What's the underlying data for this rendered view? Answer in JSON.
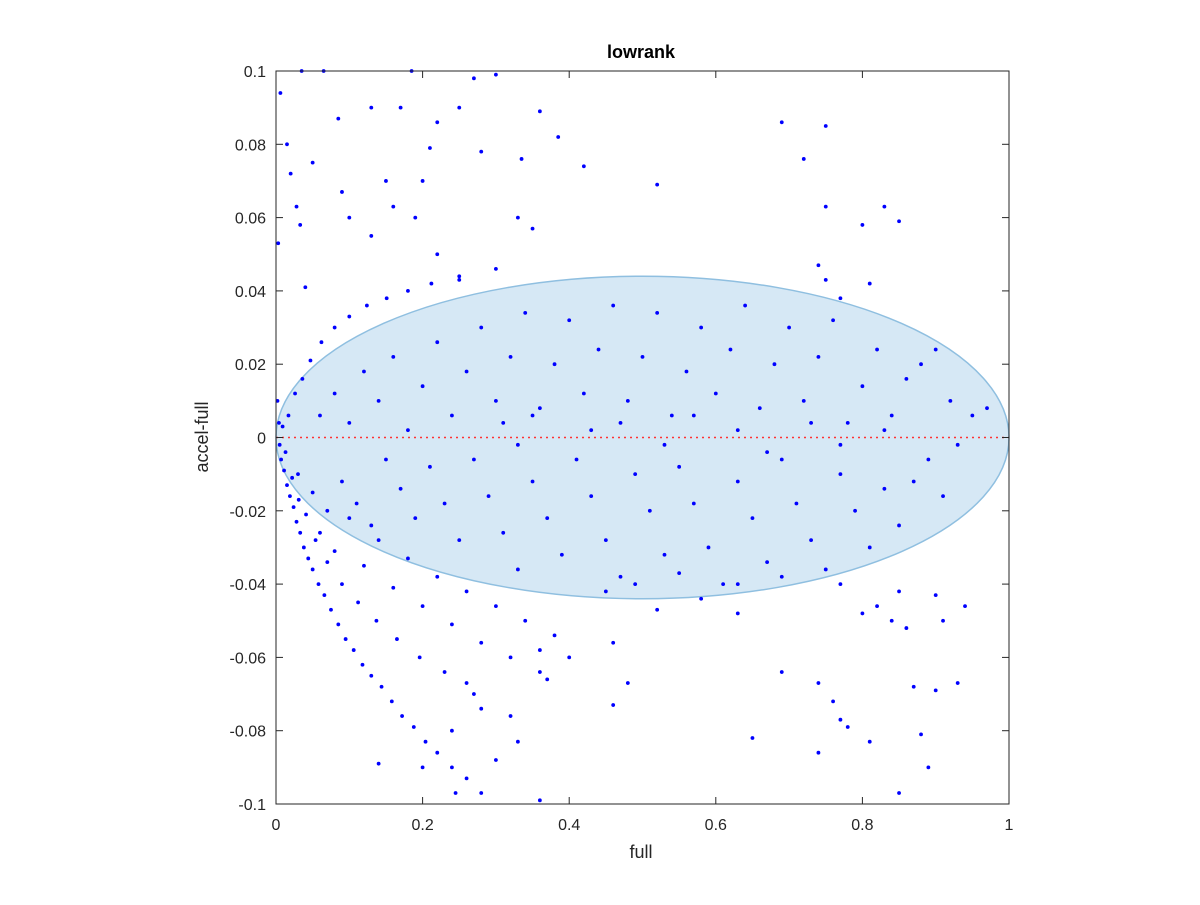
{
  "chart_data": {
    "type": "scatter",
    "title": "lowrank",
    "xlabel": "full",
    "ylabel": "accel-full",
    "xlim": [
      0,
      1
    ],
    "ylim": [
      -0.1,
      0.1
    ],
    "xticks": [
      "0",
      "0.2",
      "0.4",
      "0.6",
      "0.8",
      "1"
    ],
    "yticks": [
      "-0.1",
      "-0.08",
      "-0.06",
      "-0.04",
      "-0.02",
      "0",
      "0.02",
      "0.04",
      "0.06",
      "0.08",
      "0.1"
    ],
    "grid": false,
    "colors": {
      "points": "#0000ff",
      "ellipse_fill": "#d6e8f5",
      "ellipse_edge": "#8fbfe0",
      "reference_line": "#ff3333"
    },
    "reference_line": {
      "y": 0,
      "style": "dotted"
    },
    "ellipse": {
      "center": [
        0.5,
        0
      ],
      "semi_axis_x": 0.5,
      "semi_axis_y": 0.044
    },
    "points": [
      [
        0.003,
        0.053
      ],
      [
        0.006,
        0.094
      ],
      [
        0.015,
        0.08
      ],
      [
        0.02,
        0.072
      ],
      [
        0.028,
        0.063
      ],
      [
        0.033,
        0.058
      ],
      [
        0.035,
        0.1
      ],
      [
        0.04,
        0.041
      ],
      [
        0.05,
        0.075
      ],
      [
        0.065,
        0.1
      ],
      [
        0.085,
        0.087
      ],
      [
        0.09,
        0.067
      ],
      [
        0.13,
        0.09
      ],
      [
        0.17,
        0.09
      ],
      [
        0.185,
        0.1
      ],
      [
        0.21,
        0.079
      ],
      [
        0.22,
        0.086
      ],
      [
        0.25,
        0.09
      ],
      [
        0.27,
        0.098
      ],
      [
        0.3,
        0.099
      ],
      [
        0.36,
        0.089
      ],
      [
        0.385,
        0.082
      ],
      [
        0.28,
        0.078
      ],
      [
        0.335,
        0.076
      ],
      [
        0.42,
        0.074
      ],
      [
        0.52,
        0.069
      ],
      [
        0.1,
        0.06
      ],
      [
        0.13,
        0.055
      ],
      [
        0.16,
        0.063
      ],
      [
        0.19,
        0.06
      ],
      [
        0.22,
        0.05
      ],
      [
        0.25,
        0.044
      ],
      [
        0.3,
        0.046
      ],
      [
        0.33,
        0.06
      ],
      [
        0.35,
        0.057
      ],
      [
        0.2,
        0.07
      ],
      [
        0.15,
        0.07
      ],
      [
        0.69,
        0.086
      ],
      [
        0.72,
        0.076
      ],
      [
        0.75,
        0.085
      ],
      [
        0.75,
        0.063
      ],
      [
        0.8,
        0.058
      ],
      [
        0.83,
        0.063
      ],
      [
        0.85,
        0.059
      ],
      [
        0.74,
        0.047
      ],
      [
        0.75,
        0.043
      ],
      [
        0.81,
        0.042
      ],
      [
        0.77,
        0.038
      ],
      [
        0.002,
        0.01
      ],
      [
        0.004,
        0.004
      ],
      [
        0.005,
        -0.002
      ],
      [
        0.007,
        -0.006
      ],
      [
        0.009,
        0.003
      ],
      [
        0.011,
        -0.009
      ],
      [
        0.013,
        -0.004
      ],
      [
        0.015,
        -0.013
      ],
      [
        0.017,
        0.006
      ],
      [
        0.019,
        -0.016
      ],
      [
        0.022,
        -0.011
      ],
      [
        0.024,
        -0.019
      ],
      [
        0.026,
        0.012
      ],
      [
        0.028,
        -0.023
      ],
      [
        0.031,
        -0.017
      ],
      [
        0.033,
        -0.026
      ],
      [
        0.036,
        0.016
      ],
      [
        0.038,
        -0.03
      ],
      [
        0.041,
        -0.021
      ],
      [
        0.044,
        -0.033
      ],
      [
        0.047,
        0.021
      ],
      [
        0.05,
        -0.036
      ],
      [
        0.054,
        -0.028
      ],
      [
        0.058,
        -0.04
      ],
      [
        0.062,
        0.026
      ],
      [
        0.066,
        -0.043
      ],
      [
        0.07,
        -0.034
      ],
      [
        0.075,
        -0.047
      ],
      [
        0.08,
        0.03
      ],
      [
        0.085,
        -0.051
      ],
      [
        0.09,
        -0.04
      ],
      [
        0.095,
        -0.055
      ],
      [
        0.1,
        0.033
      ],
      [
        0.106,
        -0.058
      ],
      [
        0.112,
        -0.045
      ],
      [
        0.118,
        -0.062
      ],
      [
        0.124,
        0.036
      ],
      [
        0.13,
        -0.065
      ],
      [
        0.137,
        -0.05
      ],
      [
        0.144,
        -0.068
      ],
      [
        0.151,
        0.038
      ],
      [
        0.158,
        -0.072
      ],
      [
        0.165,
        -0.055
      ],
      [
        0.172,
        -0.076
      ],
      [
        0.18,
        0.04
      ],
      [
        0.188,
        -0.079
      ],
      [
        0.196,
        -0.06
      ],
      [
        0.204,
        -0.083
      ],
      [
        0.212,
        0.042
      ],
      [
        0.22,
        -0.086
      ],
      [
        0.23,
        -0.064
      ],
      [
        0.24,
        -0.09
      ],
      [
        0.25,
        0.043
      ],
      [
        0.26,
        -0.093
      ],
      [
        0.27,
        -0.07
      ],
      [
        0.28,
        -0.097
      ],
      [
        0.14,
        -0.089
      ],
      [
        0.2,
        -0.09
      ],
      [
        0.245,
        -0.097
      ],
      [
        0.36,
        -0.099
      ],
      [
        0.06,
        -0.026
      ],
      [
        0.08,
        -0.031
      ],
      [
        0.1,
        -0.022
      ],
      [
        0.12,
        -0.035
      ],
      [
        0.14,
        -0.028
      ],
      [
        0.16,
        -0.041
      ],
      [
        0.18,
        -0.033
      ],
      [
        0.2,
        -0.046
      ],
      [
        0.22,
        -0.038
      ],
      [
        0.24,
        -0.051
      ],
      [
        0.26,
        -0.042
      ],
      [
        0.28,
        -0.056
      ],
      [
        0.3,
        -0.046
      ],
      [
        0.32,
        -0.06
      ],
      [
        0.34,
        -0.05
      ],
      [
        0.36,
        -0.064
      ],
      [
        0.38,
        -0.054
      ],
      [
        0.4,
        -0.06
      ],
      [
        0.03,
        -0.01
      ],
      [
        0.05,
        -0.015
      ],
      [
        0.07,
        -0.02
      ],
      [
        0.09,
        -0.012
      ],
      [
        0.11,
        -0.018
      ],
      [
        0.13,
        -0.024
      ],
      [
        0.06,
        0.006
      ],
      [
        0.08,
        0.012
      ],
      [
        0.1,
        0.004
      ],
      [
        0.12,
        0.018
      ],
      [
        0.14,
        0.01
      ],
      [
        0.16,
        0.022
      ],
      [
        0.18,
        0.002
      ],
      [
        0.2,
        0.014
      ],
      [
        0.22,
        0.026
      ],
      [
        0.24,
        0.006
      ],
      [
        0.26,
        0.018
      ],
      [
        0.28,
        0.03
      ],
      [
        0.3,
        0.01
      ],
      [
        0.32,
        0.022
      ],
      [
        0.34,
        0.034
      ],
      [
        0.36,
        0.008
      ],
      [
        0.38,
        0.02
      ],
      [
        0.4,
        0.032
      ],
      [
        0.42,
        0.012
      ],
      [
        0.44,
        0.024
      ],
      [
        0.46,
        0.036
      ],
      [
        0.48,
        0.01
      ],
      [
        0.5,
        0.022
      ],
      [
        0.52,
        0.034
      ],
      [
        0.54,
        0.006
      ],
      [
        0.56,
        0.018
      ],
      [
        0.58,
        0.03
      ],
      [
        0.6,
        0.012
      ],
      [
        0.62,
        0.024
      ],
      [
        0.64,
        0.036
      ],
      [
        0.66,
        0.008
      ],
      [
        0.68,
        0.02
      ],
      [
        0.7,
        0.03
      ],
      [
        0.72,
        0.01
      ],
      [
        0.74,
        0.022
      ],
      [
        0.76,
        0.032
      ],
      [
        0.78,
        0.004
      ],
      [
        0.8,
        0.014
      ],
      [
        0.82,
        0.024
      ],
      [
        0.84,
        0.006
      ],
      [
        0.86,
        0.016
      ],
      [
        0.88,
        0.02
      ],
      [
        0.9,
        0.024
      ],
      [
        0.92,
        0.01
      ],
      [
        0.95,
        0.006
      ],
      [
        0.97,
        0.008
      ],
      [
        0.15,
        -0.006
      ],
      [
        0.17,
        -0.014
      ],
      [
        0.19,
        -0.022
      ],
      [
        0.21,
        -0.008
      ],
      [
        0.23,
        -0.018
      ],
      [
        0.25,
        -0.028
      ],
      [
        0.27,
        -0.006
      ],
      [
        0.29,
        -0.016
      ],
      [
        0.31,
        -0.026
      ],
      [
        0.33,
        -0.036
      ],
      [
        0.35,
        -0.012
      ],
      [
        0.37,
        -0.022
      ],
      [
        0.39,
        -0.032
      ],
      [
        0.41,
        -0.006
      ],
      [
        0.43,
        -0.016
      ],
      [
        0.45,
        -0.028
      ],
      [
        0.47,
        -0.038
      ],
      [
        0.49,
        -0.01
      ],
      [
        0.51,
        -0.02
      ],
      [
        0.53,
        -0.032
      ],
      [
        0.55,
        -0.008
      ],
      [
        0.57,
        -0.018
      ],
      [
        0.59,
        -0.03
      ],
      [
        0.61,
        -0.04
      ],
      [
        0.63,
        -0.012
      ],
      [
        0.65,
        -0.022
      ],
      [
        0.67,
        -0.034
      ],
      [
        0.69,
        -0.006
      ],
      [
        0.71,
        -0.018
      ],
      [
        0.73,
        -0.028
      ],
      [
        0.75,
        -0.036
      ],
      [
        0.77,
        -0.01
      ],
      [
        0.79,
        -0.02
      ],
      [
        0.81,
        -0.03
      ],
      [
        0.83,
        -0.014
      ],
      [
        0.85,
        -0.024
      ],
      [
        0.87,
        -0.012
      ],
      [
        0.89,
        -0.006
      ],
      [
        0.91,
        -0.016
      ],
      [
        0.93,
        -0.002
      ],
      [
        0.31,
        0.004
      ],
      [
        0.33,
        -0.002
      ],
      [
        0.35,
        0.006
      ],
      [
        0.43,
        0.002
      ],
      [
        0.47,
        0.004
      ],
      [
        0.53,
        -0.002
      ],
      [
        0.57,
        0.006
      ],
      [
        0.63,
        0.002
      ],
      [
        0.67,
        -0.004
      ],
      [
        0.73,
        0.004
      ],
      [
        0.77,
        -0.002
      ],
      [
        0.83,
        0.002
      ],
      [
        0.45,
        -0.042
      ],
      [
        0.49,
        -0.04
      ],
      [
        0.55,
        -0.037
      ],
      [
        0.63,
        -0.04
      ],
      [
        0.69,
        -0.038
      ],
      [
        0.77,
        -0.04
      ],
      [
        0.8,
        -0.048
      ],
      [
        0.82,
        -0.046
      ],
      [
        0.85,
        -0.042
      ],
      [
        0.84,
        -0.05
      ],
      [
        0.63,
        -0.048
      ],
      [
        0.58,
        -0.044
      ],
      [
        0.52,
        -0.047
      ],
      [
        0.46,
        -0.056
      ],
      [
        0.36,
        -0.058
      ],
      [
        0.37,
        -0.066
      ],
      [
        0.48,
        -0.067
      ],
      [
        0.46,
        -0.073
      ],
      [
        0.65,
        -0.082
      ],
      [
        0.69,
        -0.064
      ],
      [
        0.74,
        -0.067
      ],
      [
        0.76,
        -0.072
      ],
      [
        0.77,
        -0.077
      ],
      [
        0.74,
        -0.086
      ],
      [
        0.78,
        -0.079
      ],
      [
        0.81,
        -0.083
      ],
      [
        0.85,
        -0.097
      ],
      [
        0.88,
        -0.081
      ],
      [
        0.87,
        -0.068
      ],
      [
        0.89,
        -0.09
      ],
      [
        0.9,
        -0.069
      ],
      [
        0.91,
        -0.05
      ],
      [
        0.93,
        -0.067
      ],
      [
        0.94,
        -0.046
      ],
      [
        0.9,
        -0.043
      ],
      [
        0.86,
        -0.052
      ],
      [
        0.32,
        -0.076
      ],
      [
        0.33,
        -0.083
      ],
      [
        0.3,
        -0.088
      ],
      [
        0.28,
        -0.074
      ],
      [
        0.26,
        -0.067
      ],
      [
        0.24,
        -0.08
      ]
    ]
  }
}
